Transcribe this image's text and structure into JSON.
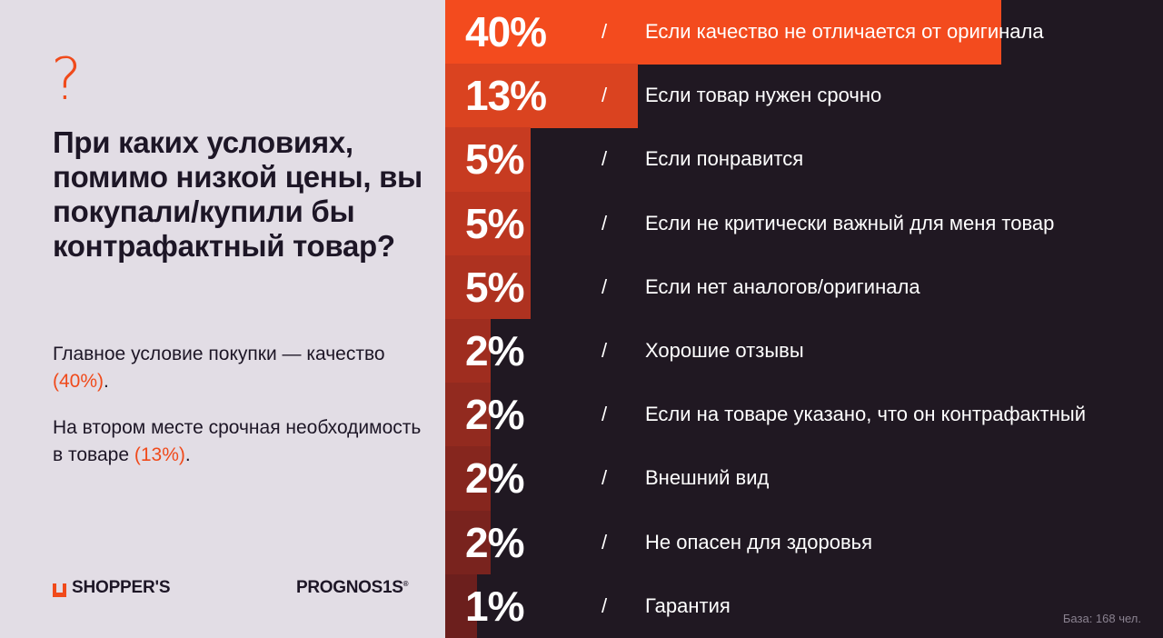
{
  "left": {
    "question_mark": "?",
    "question": "При каких условиях, помимо низкой цены, вы покупали/купили бы контрафактный товар?",
    "finding1": {
      "text": "Главное условие покупки — качество ",
      "pct": "(40%)",
      "tail": "."
    },
    "finding2": {
      "text": "На втором месте срочная необходимость в товаре ",
      "pct": "(13%)",
      "tail": "."
    },
    "logo_shoppers": "SHOPPER'S",
    "logo_prognosis": "PROGNOS1S",
    "logo_prognosis_mark": "®"
  },
  "chart_data": {
    "type": "bar",
    "orientation": "horizontal",
    "categories": [
      "Если качество не отличается от оригинала",
      "Если товар нужен срочно",
      "Если понравится",
      "Если не критически важный для меня товар",
      "Если нет аналогов/оригинала",
      "Хорошие отзывы",
      "Если на товаре указано, что он контрафактный",
      "Внешний вид",
      "Не опасен для здоровья",
      "Гарантия"
    ],
    "values": [
      40,
      13,
      5,
      5,
      5,
      2,
      2,
      2,
      2,
      1
    ],
    "value_labels": [
      "40%",
      "13%",
      "5%",
      "5%",
      "5%",
      "2%",
      "2%",
      "2%",
      "2%",
      "1%"
    ],
    "separator": "/",
    "bar_colors": [
      "#f34b1e",
      "#da4320",
      "#c73b21",
      "#bb3620",
      "#ae3220",
      "#9f2d1f",
      "#922a1f",
      "#86261e",
      "#79231e",
      "#6c1f1d"
    ],
    "background": "#201822",
    "note": "База: 168 чел."
  },
  "colors": {
    "accent": "#f04a1b",
    "dark": "#201822",
    "light": "#e2dde5"
  }
}
